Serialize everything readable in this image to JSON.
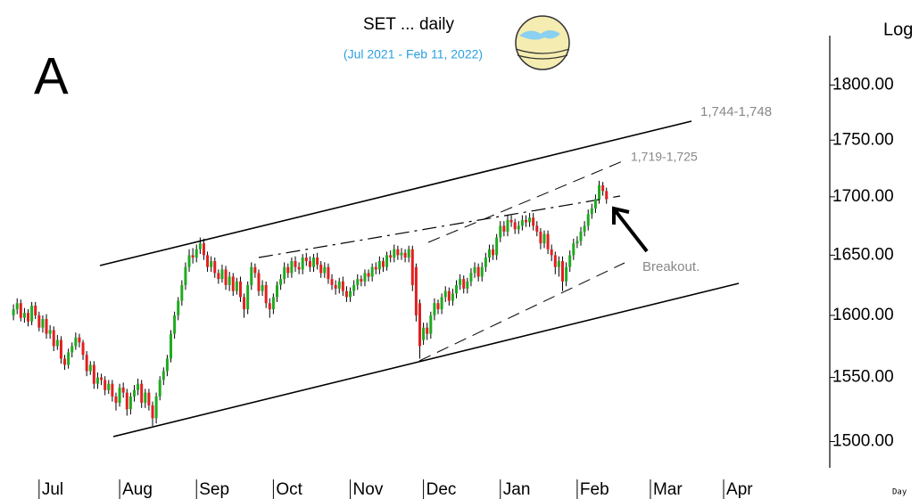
{
  "chart_data": {
    "type": "candlestick",
    "title": "SET ... daily",
    "subtitle": "(Jul 2021 - Feb 11, 2022)",
    "panel_label": "A",
    "y_axis_label": "Log",
    "x_axis_label": "Day",
    "log_scale": true,
    "annotations": [
      "1,744-1,748",
      "1,719-1,725",
      "Breakout."
    ],
    "up_color": "#1faa1f",
    "down_color": "#e02020",
    "wick_color": "#000000",
    "xlim": [
      -1,
      223
    ],
    "xticks": [
      {
        "value": 7,
        "label": "Jul"
      },
      {
        "value": 29,
        "label": "Aug"
      },
      {
        "value": 50,
        "label": "Sep"
      },
      {
        "value": 71,
        "label": "Oct"
      },
      {
        "value": 92,
        "label": "Nov"
      },
      {
        "value": 112,
        "label": "Dec"
      },
      {
        "value": 133,
        "label": "Jan"
      },
      {
        "value": 154,
        "label": "Feb"
      },
      {
        "value": 174,
        "label": "Mar"
      },
      {
        "value": 194,
        "label": "Apr"
      }
    ],
    "ylim": [
      1480,
      1880
    ],
    "yticks": [
      {
        "value": 1500,
        "label": "1500.00"
      },
      {
        "value": 1550,
        "label": "1550.00"
      },
      {
        "value": 1600,
        "label": "1600.00"
      },
      {
        "value": 1650,
        "label": "1650.00"
      },
      {
        "value": 1700,
        "label": "1700.00"
      },
      {
        "value": 1750,
        "label": "1750.00"
      },
      {
        "value": 1800,
        "label": "1800.00"
      }
    ],
    "open": [
      1600,
      1605,
      1610,
      1598,
      1602,
      1595,
      1608,
      1600,
      1590,
      1597,
      1585,
      1588,
      1575,
      1580,
      1565,
      1560,
      1570,
      1575,
      1582,
      1578,
      1568,
      1555,
      1560,
      1545,
      1550,
      1548,
      1540,
      1545,
      1535,
      1530,
      1542,
      1538,
      1525,
      1535,
      1540,
      1545,
      1530,
      1538,
      1528,
      1518,
      1535,
      1548,
      1555,
      1565,
      1585,
      1600,
      1612,
      1625,
      1640,
      1650,
      1648,
      1655,
      1660,
      1650,
      1640,
      1645,
      1635,
      1630,
      1638,
      1625,
      1632,
      1620,
      1628,
      1615,
      1605,
      1625,
      1640,
      1635,
      1620,
      1625,
      1610,
      1605,
      1615,
      1625,
      1630,
      1640,
      1635,
      1645,
      1640,
      1638,
      1648,
      1645,
      1640,
      1648,
      1642,
      1635,
      1640,
      1630,
      1625,
      1622,
      1628,
      1620,
      1615,
      1620,
      1625,
      1630,
      1628,
      1635,
      1632,
      1640,
      1638,
      1645,
      1640,
      1650,
      1648,
      1655,
      1650,
      1652,
      1648,
      1655,
      1640,
      1610,
      1580,
      1590,
      1585,
      1600,
      1610,
      1605,
      1615,
      1620,
      1612,
      1618,
      1625,
      1630,
      1622,
      1628,
      1635,
      1640,
      1632,
      1640,
      1648,
      1655,
      1650,
      1665,
      1675,
      1670,
      1680,
      1678,
      1672,
      1675,
      1680,
      1678,
      1682,
      1675,
      1670,
      1660,
      1668,
      1655,
      1650,
      1640,
      1645,
      1628,
      1640,
      1650,
      1660,
      1662,
      1670,
      1675,
      1685,
      1690,
      1698,
      1710,
      1705
    ],
    "high": [
      1609,
      1614,
      1613,
      1606,
      1605,
      1611,
      1611,
      1603,
      1600,
      1601,
      1592,
      1591,
      1584,
      1583,
      1568,
      1573,
      1578,
      1586,
      1585,
      1580,
      1571,
      1563,
      1563,
      1554,
      1553,
      1551,
      1548,
      1548,
      1538,
      1545,
      1546,
      1541,
      1538,
      1544,
      1549,
      1548,
      1541,
      1541,
      1531,
      1538,
      1551,
      1558,
      1568,
      1588,
      1603,
      1615,
      1629,
      1644,
      1655,
      1656,
      1659,
      1665,
      1664,
      1653,
      1649,
      1648,
      1638,
      1642,
      1641,
      1636,
      1635,
      1631,
      1632,
      1618,
      1628,
      1644,
      1643,
      1638,
      1629,
      1628,
      1614,
      1618,
      1628,
      1634,
      1644,
      1643,
      1648,
      1649,
      1644,
      1651,
      1652,
      1649,
      1651,
      1652,
      1645,
      1644,
      1643,
      1634,
      1629,
      1631,
      1632,
      1624,
      1623,
      1629,
      1634,
      1633,
      1638,
      1638,
      1643,
      1644,
      1649,
      1648,
      1653,
      1654,
      1659,
      1658,
      1656,
      1655,
      1658,
      1658,
      1643,
      1613,
      1594,
      1594,
      1603,
      1614,
      1613,
      1618,
      1624,
      1623,
      1622,
      1629,
      1634,
      1633,
      1631,
      1639,
      1644,
      1643,
      1644,
      1652,
      1659,
      1659,
      1668,
      1679,
      1679,
      1684,
      1684,
      1681,
      1679,
      1684,
      1684,
      1686,
      1686,
      1679,
      1673,
      1671,
      1671,
      1659,
      1653,
      1649,
      1649,
      1644,
      1654,
      1664,
      1666,
      1674,
      1679,
      1689,
      1694,
      1702,
      1714,
      1713,
      1708
    ],
    "low": [
      1596,
      1601,
      1595,
      1594,
      1591,
      1592,
      1597,
      1587,
      1586,
      1581,
      1581,
      1571,
      1572,
      1561,
      1556,
      1557,
      1566,
      1572,
      1574,
      1564,
      1551,
      1552,
      1541,
      1541,
      1544,
      1536,
      1537,
      1531,
      1524,
      1527,
      1534,
      1520,
      1521,
      1531,
      1536,
      1526,
      1526,
      1524,
      1512,
      1514,
      1532,
      1544,
      1551,
      1562,
      1581,
      1596,
      1608,
      1621,
      1636,
      1643,
      1644,
      1651,
      1646,
      1636,
      1636,
      1631,
      1626,
      1627,
      1621,
      1620,
      1616,
      1617,
      1611,
      1598,
      1601,
      1621,
      1631,
      1616,
      1616,
      1606,
      1598,
      1601,
      1611,
      1621,
      1626,
      1631,
      1631,
      1636,
      1634,
      1634,
      1641,
      1636,
      1636,
      1638,
      1631,
      1631,
      1626,
      1621,
      1617,
      1618,
      1616,
      1611,
      1611,
      1616,
      1621,
      1624,
      1624,
      1628,
      1628,
      1634,
      1634,
      1636,
      1637,
      1644,
      1644,
      1646,
      1646,
      1644,
      1644,
      1620,
      1595,
      1565,
      1576,
      1580,
      1581,
      1596,
      1601,
      1601,
      1611,
      1608,
      1608,
      1614,
      1621,
      1618,
      1618,
      1624,
      1631,
      1628,
      1628,
      1636,
      1644,
      1646,
      1646,
      1661,
      1666,
      1666,
      1674,
      1668,
      1668,
      1671,
      1674,
      1674,
      1671,
      1666,
      1655,
      1656,
      1651,
      1645,
      1634,
      1632,
      1620,
      1624,
      1636,
      1646,
      1656,
      1658,
      1666,
      1671,
      1681,
      1686,
      1694,
      1701,
      1694
    ],
    "close": [
      1605,
      1610,
      1598,
      1602,
      1595,
      1608,
      1600,
      1590,
      1597,
      1585,
      1588,
      1575,
      1580,
      1565,
      1560,
      1570,
      1575,
      1582,
      1578,
      1568,
      1555,
      1560,
      1545,
      1550,
      1548,
      1540,
      1545,
      1535,
      1530,
      1542,
      1538,
      1525,
      1535,
      1540,
      1545,
      1530,
      1538,
      1528,
      1518,
      1535,
      1548,
      1555,
      1565,
      1585,
      1600,
      1612,
      1625,
      1640,
      1650,
      1648,
      1655,
      1660,
      1650,
      1640,
      1645,
      1635,
      1630,
      1638,
      1625,
      1632,
      1620,
      1628,
      1615,
      1605,
      1625,
      1640,
      1635,
      1620,
      1625,
      1610,
      1605,
      1615,
      1625,
      1630,
      1640,
      1635,
      1645,
      1640,
      1638,
      1648,
      1645,
      1640,
      1648,
      1642,
      1635,
      1640,
      1630,
      1625,
      1622,
      1628,
      1620,
      1615,
      1620,
      1625,
      1630,
      1628,
      1635,
      1632,
      1640,
      1638,
      1645,
      1640,
      1650,
      1648,
      1655,
      1650,
      1652,
      1648,
      1655,
      1625,
      1600,
      1575,
      1590,
      1585,
      1600,
      1610,
      1605,
      1615,
      1620,
      1612,
      1618,
      1625,
      1630,
      1622,
      1628,
      1635,
      1640,
      1632,
      1640,
      1648,
      1655,
      1650,
      1665,
      1675,
      1670,
      1680,
      1678,
      1672,
      1675,
      1680,
      1678,
      1682,
      1675,
      1670,
      1660,
      1668,
      1655,
      1650,
      1640,
      1645,
      1628,
      1640,
      1650,
      1660,
      1662,
      1670,
      1675,
      1685,
      1690,
      1698,
      1710,
      1705,
      1698
    ]
  }
}
